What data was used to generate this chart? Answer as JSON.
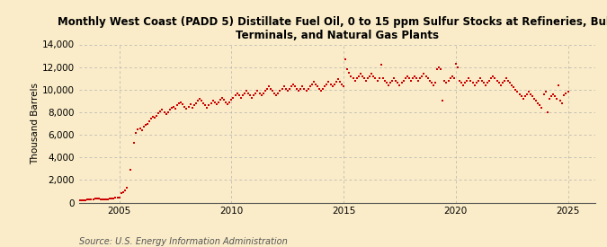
{
  "title": "Monthly West Coast (PADD 5) Distillate Fuel Oil, 0 to 15 ppm Sulfur Stocks at Refineries, Bulk\nTerminals, and Natural Gas Plants",
  "ylabel": "Thousand Barrels",
  "source": "Source: U.S. Energy Information Administration",
  "background_color": "#faecc8",
  "dot_color": "#cc0000",
  "dot_size": 3.5,
  "dot_marker": "s",
  "xlim_start": 2003.2,
  "xlim_end": 2026.2,
  "ylim": [
    0,
    14000
  ],
  "yticks": [
    0,
    2000,
    4000,
    6000,
    8000,
    10000,
    12000,
    14000
  ],
  "xticks": [
    2005,
    2010,
    2015,
    2020,
    2025
  ],
  "title_fontsize": 8.5,
  "ylabel_fontsize": 7.5,
  "tick_fontsize": 7.5,
  "source_fontsize": 7.0,
  "data": [
    [
      2003.083,
      200
    ],
    [
      2003.167,
      220
    ],
    [
      2003.25,
      180
    ],
    [
      2003.333,
      200
    ],
    [
      2003.417,
      230
    ],
    [
      2003.5,
      210
    ],
    [
      2003.583,
      250
    ],
    [
      2003.667,
      270
    ],
    [
      2003.75,
      290
    ],
    [
      2003.833,
      310
    ],
    [
      2003.917,
      330
    ],
    [
      2004.0,
      350
    ],
    [
      2004.083,
      320
    ],
    [
      2004.167,
      300
    ],
    [
      2004.25,
      280
    ],
    [
      2004.333,
      250
    ],
    [
      2004.417,
      270
    ],
    [
      2004.5,
      300
    ],
    [
      2004.583,
      320
    ],
    [
      2004.667,
      350
    ],
    [
      2004.75,
      380
    ],
    [
      2004.833,
      400
    ],
    [
      2004.917,
      420
    ],
    [
      2005.0,
      440
    ],
    [
      2005.083,
      800
    ],
    [
      2005.167,
      900
    ],
    [
      2005.25,
      1100
    ],
    [
      2005.333,
      1300
    ],
    [
      2005.5,
      2900
    ],
    [
      2005.667,
      5300
    ],
    [
      2005.75,
      6200
    ],
    [
      2005.833,
      6500
    ],
    [
      2005.917,
      6600
    ],
    [
      2006.0,
      6400
    ],
    [
      2006.083,
      6700
    ],
    [
      2006.167,
      6900
    ],
    [
      2006.25,
      7000
    ],
    [
      2006.333,
      7200
    ],
    [
      2006.417,
      7400
    ],
    [
      2006.5,
      7600
    ],
    [
      2006.583,
      7500
    ],
    [
      2006.667,
      7700
    ],
    [
      2006.75,
      7900
    ],
    [
      2006.833,
      8100
    ],
    [
      2006.917,
      8200
    ],
    [
      2007.0,
      8000
    ],
    [
      2007.083,
      7800
    ],
    [
      2007.167,
      8000
    ],
    [
      2007.25,
      8200
    ],
    [
      2007.333,
      8400
    ],
    [
      2007.417,
      8500
    ],
    [
      2007.5,
      8300
    ],
    [
      2007.583,
      8600
    ],
    [
      2007.667,
      8800
    ],
    [
      2007.75,
      8900
    ],
    [
      2007.833,
      8700
    ],
    [
      2007.917,
      8500
    ],
    [
      2008.0,
      8300
    ],
    [
      2008.083,
      8500
    ],
    [
      2008.167,
      8700
    ],
    [
      2008.25,
      8400
    ],
    [
      2008.333,
      8600
    ],
    [
      2008.417,
      8800
    ],
    [
      2008.5,
      9000
    ],
    [
      2008.583,
      9200
    ],
    [
      2008.667,
      9000
    ],
    [
      2008.75,
      8800
    ],
    [
      2008.833,
      8600
    ],
    [
      2008.917,
      8400
    ],
    [
      2009.0,
      8600
    ],
    [
      2009.083,
      8800
    ],
    [
      2009.167,
      9000
    ],
    [
      2009.25,
      8900
    ],
    [
      2009.333,
      8700
    ],
    [
      2009.417,
      8900
    ],
    [
      2009.5,
      9100
    ],
    [
      2009.583,
      9300
    ],
    [
      2009.667,
      9100
    ],
    [
      2009.75,
      8900
    ],
    [
      2009.833,
      8700
    ],
    [
      2009.917,
      8900
    ],
    [
      2010.0,
      9100
    ],
    [
      2010.083,
      9300
    ],
    [
      2010.167,
      9500
    ],
    [
      2010.25,
      9700
    ],
    [
      2010.333,
      9500
    ],
    [
      2010.417,
      9300
    ],
    [
      2010.5,
      9500
    ],
    [
      2010.583,
      9700
    ],
    [
      2010.667,
      9900
    ],
    [
      2010.75,
      9700
    ],
    [
      2010.833,
      9500
    ],
    [
      2010.917,
      9300
    ],
    [
      2011.0,
      9500
    ],
    [
      2011.083,
      9700
    ],
    [
      2011.167,
      9900
    ],
    [
      2011.25,
      9700
    ],
    [
      2011.333,
      9500
    ],
    [
      2011.417,
      9700
    ],
    [
      2011.5,
      9900
    ],
    [
      2011.583,
      10100
    ],
    [
      2011.667,
      10300
    ],
    [
      2011.75,
      10100
    ],
    [
      2011.833,
      9900
    ],
    [
      2011.917,
      9700
    ],
    [
      2012.0,
      9500
    ],
    [
      2012.083,
      9700
    ],
    [
      2012.167,
      9900
    ],
    [
      2012.25,
      10100
    ],
    [
      2012.333,
      10300
    ],
    [
      2012.417,
      10100
    ],
    [
      2012.5,
      9900
    ],
    [
      2012.583,
      10100
    ],
    [
      2012.667,
      10300
    ],
    [
      2012.75,
      10500
    ],
    [
      2012.833,
      10300
    ],
    [
      2012.917,
      10100
    ],
    [
      2013.0,
      9900
    ],
    [
      2013.083,
      10100
    ],
    [
      2013.167,
      10300
    ],
    [
      2013.25,
      10100
    ],
    [
      2013.333,
      9900
    ],
    [
      2013.417,
      10100
    ],
    [
      2013.5,
      10300
    ],
    [
      2013.583,
      10500
    ],
    [
      2013.667,
      10700
    ],
    [
      2013.75,
      10500
    ],
    [
      2013.833,
      10300
    ],
    [
      2013.917,
      10100
    ],
    [
      2014.0,
      9900
    ],
    [
      2014.083,
      10100
    ],
    [
      2014.167,
      10300
    ],
    [
      2014.25,
      10500
    ],
    [
      2014.333,
      10700
    ],
    [
      2014.417,
      10500
    ],
    [
      2014.5,
      10300
    ],
    [
      2014.583,
      10500
    ],
    [
      2014.667,
      10700
    ],
    [
      2014.75,
      10900
    ],
    [
      2014.833,
      10700
    ],
    [
      2014.917,
      10500
    ],
    [
      2015.0,
      10300
    ],
    [
      2015.083,
      12700
    ],
    [
      2015.167,
      11800
    ],
    [
      2015.25,
      11500
    ],
    [
      2015.333,
      11200
    ],
    [
      2015.417,
      11000
    ],
    [
      2015.5,
      10800
    ],
    [
      2015.583,
      11000
    ],
    [
      2015.667,
      11200
    ],
    [
      2015.75,
      11400
    ],
    [
      2015.833,
      11200
    ],
    [
      2015.917,
      11000
    ],
    [
      2016.0,
      10800
    ],
    [
      2016.083,
      11000
    ],
    [
      2016.167,
      11200
    ],
    [
      2016.25,
      11400
    ],
    [
      2016.333,
      11200
    ],
    [
      2016.417,
      11000
    ],
    [
      2016.5,
      10800
    ],
    [
      2016.583,
      11000
    ],
    [
      2016.667,
      12200
    ],
    [
      2016.75,
      11000
    ],
    [
      2016.833,
      10800
    ],
    [
      2016.917,
      10600
    ],
    [
      2017.0,
      10400
    ],
    [
      2017.083,
      10600
    ],
    [
      2017.167,
      10800
    ],
    [
      2017.25,
      11000
    ],
    [
      2017.333,
      10800
    ],
    [
      2017.417,
      10600
    ],
    [
      2017.5,
      10400
    ],
    [
      2017.583,
      10600
    ],
    [
      2017.667,
      10800
    ],
    [
      2017.75,
      11000
    ],
    [
      2017.833,
      11200
    ],
    [
      2017.917,
      11000
    ],
    [
      2018.0,
      10800
    ],
    [
      2018.083,
      11000
    ],
    [
      2018.167,
      11200
    ],
    [
      2018.25,
      11000
    ],
    [
      2018.333,
      10800
    ],
    [
      2018.417,
      11000
    ],
    [
      2018.5,
      11200
    ],
    [
      2018.583,
      11400
    ],
    [
      2018.667,
      11200
    ],
    [
      2018.75,
      11000
    ],
    [
      2018.833,
      10800
    ],
    [
      2018.917,
      10600
    ],
    [
      2019.0,
      10400
    ],
    [
      2019.083,
      10600
    ],
    [
      2019.167,
      11800
    ],
    [
      2019.25,
      12000
    ],
    [
      2019.333,
      11800
    ],
    [
      2019.417,
      9000
    ],
    [
      2019.5,
      10800
    ],
    [
      2019.583,
      10600
    ],
    [
      2019.667,
      10800
    ],
    [
      2019.75,
      11000
    ],
    [
      2019.833,
      11200
    ],
    [
      2019.917,
      11000
    ],
    [
      2020.0,
      12300
    ],
    [
      2020.083,
      12000
    ],
    [
      2020.167,
      10800
    ],
    [
      2020.25,
      10600
    ],
    [
      2020.333,
      10400
    ],
    [
      2020.417,
      10600
    ],
    [
      2020.5,
      10800
    ],
    [
      2020.583,
      11000
    ],
    [
      2020.667,
      10800
    ],
    [
      2020.75,
      10600
    ],
    [
      2020.833,
      10400
    ],
    [
      2020.917,
      10600
    ],
    [
      2021.0,
      10800
    ],
    [
      2021.083,
      11000
    ],
    [
      2021.167,
      10800
    ],
    [
      2021.25,
      10600
    ],
    [
      2021.333,
      10400
    ],
    [
      2021.417,
      10600
    ],
    [
      2021.5,
      10800
    ],
    [
      2021.583,
      11000
    ],
    [
      2021.667,
      11200
    ],
    [
      2021.75,
      11000
    ],
    [
      2021.833,
      10800
    ],
    [
      2021.917,
      10600
    ],
    [
      2022.0,
      10400
    ],
    [
      2022.083,
      10600
    ],
    [
      2022.167,
      10800
    ],
    [
      2022.25,
      11000
    ],
    [
      2022.333,
      10800
    ],
    [
      2022.417,
      10600
    ],
    [
      2022.5,
      10400
    ],
    [
      2022.583,
      10200
    ],
    [
      2022.667,
      10000
    ],
    [
      2022.75,
      9800
    ],
    [
      2022.833,
      9600
    ],
    [
      2022.917,
      9400
    ],
    [
      2023.0,
      9200
    ],
    [
      2023.083,
      9400
    ],
    [
      2023.167,
      9600
    ],
    [
      2023.25,
      9800
    ],
    [
      2023.333,
      9600
    ],
    [
      2023.417,
      9400
    ],
    [
      2023.5,
      9200
    ],
    [
      2023.583,
      9000
    ],
    [
      2023.667,
      8800
    ],
    [
      2023.75,
      8600
    ],
    [
      2023.833,
      8400
    ],
    [
      2023.917,
      9600
    ],
    [
      2024.0,
      9800
    ],
    [
      2024.083,
      8000
    ],
    [
      2024.167,
      9200
    ],
    [
      2024.25,
      9400
    ],
    [
      2024.333,
      9600
    ],
    [
      2024.417,
      9400
    ],
    [
      2024.5,
      9200
    ],
    [
      2024.583,
      10400
    ],
    [
      2024.667,
      9000
    ],
    [
      2024.75,
      8800
    ],
    [
      2024.833,
      9500
    ],
    [
      2024.917,
      9700
    ],
    [
      2025.0,
      9800
    ]
  ]
}
